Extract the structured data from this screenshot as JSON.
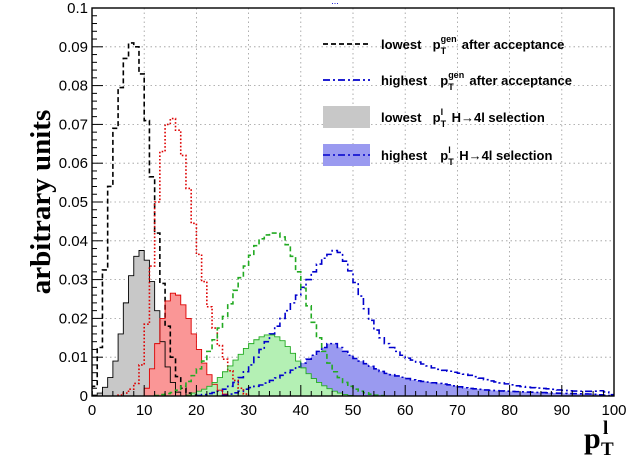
{
  "chart_data": {
    "type": "histogram",
    "xlabel": "p",
    "xlabel_sup": "l",
    "xlabel_sub": "T",
    "ylabel": "arbitrary units",
    "top_clipped_text": "...",
    "xlim": [
      0,
      100
    ],
    "ylim": [
      0,
      0.1
    ],
    "xticks": [
      0,
      10,
      20,
      30,
      40,
      50,
      60,
      70,
      80,
      90,
      100
    ],
    "yticks": [
      "0",
      "0.01",
      "0.02",
      "0.03",
      "0.04",
      "0.05",
      "0.06",
      "0.07",
      "0.08",
      "0.09",
      "0.1"
    ],
    "grid": true,
    "bin_width": 1,
    "legend_position": "top-right",
    "series": [
      {
        "label_main": "lowest",
        "label_sym": "p",
        "label_sup": "gen",
        "label_sub": "T",
        "label_rest": "after acceptance",
        "style": "dashed",
        "color": "#000000",
        "fill": null,
        "x": [
          0,
          1,
          2,
          3,
          4,
          5,
          6,
          7,
          8,
          9,
          10,
          11,
          12,
          13,
          14,
          15,
          16,
          17,
          18,
          19,
          20
        ],
        "values": [
          0.0,
          0.005,
          0.02,
          0.045,
          0.063,
          0.075,
          0.084,
          0.09,
          0.092,
          0.088,
          0.078,
          0.064,
          0.049,
          0.035,
          0.023,
          0.013,
          0.007,
          0.003,
          0.001,
          0.0005,
          0.0
        ]
      },
      {
        "label_main": "highest",
        "label_sym": "p",
        "label_sup": "gen",
        "label_sub": "T",
        "label_rest": "after acceptance",
        "style": "dash-dot",
        "color": "#0000cc",
        "fill": null,
        "x": [
          20,
          22,
          24,
          26,
          28,
          30,
          32,
          34,
          36,
          38,
          40,
          42,
          44,
          46,
          47,
          48,
          50,
          52,
          54,
          56,
          58,
          60,
          62,
          64,
          66,
          68,
          70,
          72,
          74,
          76,
          78,
          80,
          82,
          84,
          86,
          88,
          90,
          92,
          94,
          96,
          98,
          100
        ],
        "values": [
          0.0,
          0.0005,
          0.001,
          0.002,
          0.004,
          0.007,
          0.011,
          0.015,
          0.019,
          0.023,
          0.027,
          0.031,
          0.035,
          0.037,
          0.038,
          0.036,
          0.031,
          0.024,
          0.018,
          0.014,
          0.012,
          0.01,
          0.009,
          0.008,
          0.007,
          0.0065,
          0.006,
          0.0055,
          0.0048,
          0.004,
          0.0035,
          0.003,
          0.0025,
          0.0022,
          0.002,
          0.0018,
          0.0015,
          0.0013,
          0.0012,
          0.0012,
          0.0014,
          0.0
        ]
      },
      {
        "label_main": "lowest",
        "label_sym": "p",
        "label_sup": "l",
        "label_sub": "T",
        "label_rest": "H→4l selection",
        "style": "filled",
        "color": "#000000",
        "fill": "#c8c8c8",
        "x": [
          0,
          2,
          4,
          5,
          6,
          7,
          8,
          9,
          10,
          11,
          12,
          13,
          14,
          15,
          16,
          17
        ],
        "values": [
          0.0,
          0.001,
          0.006,
          0.012,
          0.02,
          0.028,
          0.034,
          0.038,
          0.037,
          0.033,
          0.026,
          0.018,
          0.01,
          0.005,
          0.002,
          0.0
        ]
      },
      {
        "label_main": "highest",
        "label_sym": "p",
        "label_sup": "l",
        "label_sub": "T",
        "label_rest": "H→4l selection",
        "style": "filled-dash-dot",
        "color": "#0000cc",
        "fill": "#9a9af0",
        "x": [
          25,
          28,
          30,
          33,
          36,
          39,
          42,
          45,
          46,
          47,
          48,
          50,
          53,
          56,
          59,
          62,
          65,
          68,
          70,
          72,
          74,
          76,
          80,
          84,
          88,
          92,
          96,
          100
        ],
        "values": [
          0.0,
          0.001,
          0.002,
          0.003,
          0.005,
          0.007,
          0.01,
          0.013,
          0.014,
          0.013,
          0.012,
          0.01,
          0.008,
          0.006,
          0.005,
          0.004,
          0.0035,
          0.003,
          0.0025,
          0.002,
          0.0018,
          0.0015,
          0.0012,
          0.001,
          0.0008,
          0.0006,
          0.0005,
          0.0
        ]
      },
      {
        "label_main": null,
        "style": "dotted",
        "color": "#dd0000",
        "fill": null,
        "x": [
          5,
          7,
          9,
          10,
          11,
          12,
          13,
          14,
          15,
          16,
          17,
          18,
          19,
          20,
          21,
          22,
          23,
          24,
          25,
          26,
          27,
          28,
          29,
          30
        ],
        "values": [
          0.0,
          0.001,
          0.004,
          0.012,
          0.025,
          0.042,
          0.058,
          0.068,
          0.072,
          0.071,
          0.066,
          0.058,
          0.049,
          0.04,
          0.033,
          0.026,
          0.02,
          0.015,
          0.011,
          0.008,
          0.005,
          0.003,
          0.001,
          0.0
        ]
      },
      {
        "label_main": null,
        "style": "filled",
        "color": "#dd0000",
        "fill": "#fa9696",
        "x": [
          10,
          11,
          12,
          13,
          14,
          15,
          16,
          17,
          18,
          19,
          20,
          21,
          22,
          23,
          24,
          25,
          26
        ],
        "values": [
          0.0,
          0.004,
          0.01,
          0.017,
          0.023,
          0.026,
          0.027,
          0.025,
          0.022,
          0.018,
          0.014,
          0.01,
          0.007,
          0.004,
          0.002,
          0.001,
          0.0
        ]
      },
      {
        "label_main": null,
        "style": "dashed",
        "color": "#22aa22",
        "fill": null,
        "x": [
          12,
          14,
          16,
          18,
          20,
          22,
          24,
          26,
          28,
          30,
          32,
          34,
          36,
          38,
          40,
          42,
          44,
          46,
          48,
          50,
          52,
          54,
          56
        ],
        "values": [
          0.0,
          0.0005,
          0.001,
          0.003,
          0.006,
          0.01,
          0.016,
          0.022,
          0.029,
          0.035,
          0.04,
          0.042,
          0.042,
          0.038,
          0.03,
          0.021,
          0.013,
          0.007,
          0.004,
          0.002,
          0.001,
          0.0003,
          0.0
        ]
      },
      {
        "label_main": null,
        "style": "filled",
        "color": "#22aa22",
        "fill": "#b4f0b4",
        "x": [
          18,
          20,
          22,
          24,
          26,
          28,
          30,
          32,
          34,
          36,
          38,
          40,
          42,
          44,
          46,
          48,
          50
        ],
        "values": [
          0.0,
          0.001,
          0.002,
          0.004,
          0.007,
          0.01,
          0.013,
          0.015,
          0.016,
          0.015,
          0.012,
          0.008,
          0.005,
          0.003,
          0.0015,
          0.0005,
          0.0
        ]
      }
    ]
  }
}
